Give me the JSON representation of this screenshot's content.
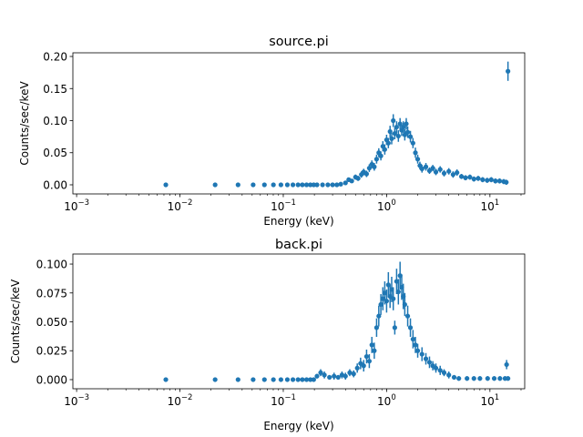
{
  "colors": {
    "series": "#1f77b4",
    "axis": "#000000",
    "background": "#ffffff"
  },
  "chart_data": [
    {
      "type": "scatter",
      "title": "source.pi",
      "xlabel": "Energy (keV)",
      "ylabel": "Counts/sec/keV",
      "xscale": "log",
      "xlim": [
        0.00092,
        21.7
      ],
      "ylim": [
        -0.0142,
        0.2057
      ],
      "xticks": [
        {
          "v": 0.001,
          "base": "10",
          "exp": "−3"
        },
        {
          "v": 0.01,
          "base": "10",
          "exp": "−2"
        },
        {
          "v": 0.1,
          "base": "10",
          "exp": "−1"
        },
        {
          "v": 1,
          "base": "10",
          "exp": "0"
        },
        {
          "v": 10,
          "base": "10",
          "exp": "1"
        }
      ],
      "yticks": [
        {
          "v": 0,
          "label": "0.00"
        },
        {
          "v": 0.05,
          "label": "0.05"
        },
        {
          "v": 0.1,
          "label": "0.10"
        },
        {
          "v": 0.15,
          "label": "0.15"
        },
        {
          "v": 0.2,
          "label": "0.20"
        }
      ],
      "grid": false,
      "points": [
        [
          0.0073,
          0,
          0.0005
        ],
        [
          0.0219,
          0,
          0.0005
        ],
        [
          0.0365,
          0,
          0.0005
        ],
        [
          0.0511,
          0,
          0.0005
        ],
        [
          0.0657,
          0,
          0.0005
        ],
        [
          0.0803,
          0,
          0.0005
        ],
        [
          0.0949,
          0,
          0.0005
        ],
        [
          0.1095,
          0,
          0.0005
        ],
        [
          0.124,
          0,
          0.0005
        ],
        [
          0.139,
          0,
          0.0005
        ],
        [
          0.153,
          0,
          0.0005
        ],
        [
          0.168,
          0,
          0.0005
        ],
        [
          0.183,
          0,
          0.0005
        ],
        [
          0.197,
          0,
          0.0005
        ],
        [
          0.212,
          0,
          0.0005
        ],
        [
          0.24,
          0,
          0.0005
        ],
        [
          0.27,
          0,
          0.0005
        ],
        [
          0.3,
          0,
          0.0005
        ],
        [
          0.33,
          0,
          0.0005
        ],
        [
          0.36,
          0.001,
          0.001
        ],
        [
          0.4,
          0.003,
          0.002
        ],
        [
          0.43,
          0.008,
          0.003
        ],
        [
          0.46,
          0.006,
          0.003
        ],
        [
          0.5,
          0.012,
          0.004
        ],
        [
          0.53,
          0.01,
          0.004
        ],
        [
          0.57,
          0.016,
          0.005
        ],
        [
          0.6,
          0.02,
          0.005
        ],
        [
          0.64,
          0.017,
          0.005
        ],
        [
          0.68,
          0.026,
          0.006
        ],
        [
          0.72,
          0.032,
          0.006
        ],
        [
          0.76,
          0.028,
          0.006
        ],
        [
          0.8,
          0.04,
          0.007
        ],
        [
          0.84,
          0.05,
          0.007
        ],
        [
          0.88,
          0.045,
          0.007
        ],
        [
          0.92,
          0.06,
          0.008
        ],
        [
          0.96,
          0.055,
          0.008
        ],
        [
          1.0,
          0.07,
          0.008
        ],
        [
          1.04,
          0.065,
          0.008
        ],
        [
          1.08,
          0.083,
          0.009
        ],
        [
          1.12,
          0.072,
          0.009
        ],
        [
          1.16,
          0.1,
          0.01
        ],
        [
          1.2,
          0.08,
          0.009
        ],
        [
          1.25,
          0.09,
          0.009
        ],
        [
          1.3,
          0.076,
          0.009
        ],
        [
          1.35,
          0.095,
          0.009
        ],
        [
          1.4,
          0.085,
          0.009
        ],
        [
          1.45,
          0.09,
          0.009
        ],
        [
          1.5,
          0.078,
          0.009
        ],
        [
          1.55,
          0.095,
          0.009
        ],
        [
          1.6,
          0.082,
          0.009
        ],
        [
          1.7,
          0.075,
          0.009
        ],
        [
          1.8,
          0.065,
          0.008
        ],
        [
          1.9,
          0.05,
          0.008
        ],
        [
          2.0,
          0.04,
          0.007
        ],
        [
          2.1,
          0.03,
          0.006
        ],
        [
          2.2,
          0.025,
          0.006
        ],
        [
          2.4,
          0.028,
          0.006
        ],
        [
          2.6,
          0.022,
          0.005
        ],
        [
          2.8,
          0.026,
          0.005
        ],
        [
          3.0,
          0.02,
          0.005
        ],
        [
          3.3,
          0.024,
          0.005
        ],
        [
          3.6,
          0.018,
          0.005
        ],
        [
          4.0,
          0.021,
          0.005
        ],
        [
          4.4,
          0.016,
          0.005
        ],
        [
          4.8,
          0.019,
          0.005
        ],
        [
          5.3,
          0.013,
          0.004
        ],
        [
          5.8,
          0.011,
          0.004
        ],
        [
          6.4,
          0.012,
          0.004
        ],
        [
          7.0,
          0.009,
          0.004
        ],
        [
          7.7,
          0.01,
          0.004
        ],
        [
          8.5,
          0.008,
          0.004
        ],
        [
          9.4,
          0.007,
          0.004
        ],
        [
          10.3,
          0.008,
          0.004
        ],
        [
          11.3,
          0.006,
          0.004
        ],
        [
          12.4,
          0.006,
          0.004
        ],
        [
          13.6,
          0.005,
          0.004
        ],
        [
          14.4,
          0.004,
          0.004
        ],
        [
          14.95,
          0.177,
          0.015
        ]
      ]
    },
    {
      "type": "scatter",
      "title": "back.pi",
      "xlabel": "Energy (keV)",
      "ylabel": "Counts/sec/keV",
      "xscale": "log",
      "xlim": [
        0.00092,
        21.7
      ],
      "ylim": [
        -0.0079,
        0.1087
      ],
      "xticks": [
        {
          "v": 0.001,
          "base": "10",
          "exp": "−3"
        },
        {
          "v": 0.01,
          "base": "10",
          "exp": "−2"
        },
        {
          "v": 0.1,
          "base": "10",
          "exp": "−1"
        },
        {
          "v": 1,
          "base": "10",
          "exp": "0"
        },
        {
          "v": 10,
          "base": "10",
          "exp": "1"
        }
      ],
      "yticks": [
        {
          "v": 0,
          "label": "0.000"
        },
        {
          "v": 0.025,
          "label": "0.025"
        },
        {
          "v": 0.05,
          "label": "0.050"
        },
        {
          "v": 0.075,
          "label": "0.075"
        },
        {
          "v": 0.1,
          "label": "0.100"
        }
      ],
      "grid": false,
      "points": [
        [
          0.0073,
          0,
          0.0015
        ],
        [
          0.0219,
          0,
          0.0015
        ],
        [
          0.0365,
          0,
          0.0015
        ],
        [
          0.0511,
          0,
          0.0015
        ],
        [
          0.0657,
          0,
          0.0015
        ],
        [
          0.0803,
          0,
          0.0015
        ],
        [
          0.0949,
          0,
          0.0015
        ],
        [
          0.1095,
          0,
          0.0015
        ],
        [
          0.124,
          0,
          0.0015
        ],
        [
          0.139,
          0,
          0.0015
        ],
        [
          0.153,
          0,
          0.0015
        ],
        [
          0.168,
          0,
          0.0015
        ],
        [
          0.183,
          0,
          0.0015
        ],
        [
          0.197,
          0,
          0.0015
        ],
        [
          0.212,
          0.003,
          0.002
        ],
        [
          0.23,
          0.006,
          0.003
        ],
        [
          0.25,
          0.004,
          0.003
        ],
        [
          0.28,
          0.002,
          0.002
        ],
        [
          0.31,
          0.003,
          0.003
        ],
        [
          0.34,
          0.002,
          0.002
        ],
        [
          0.37,
          0.004,
          0.003
        ],
        [
          0.4,
          0.003,
          0.003
        ],
        [
          0.44,
          0.006,
          0.003
        ],
        [
          0.48,
          0.005,
          0.003
        ],
        [
          0.52,
          0.01,
          0.004
        ],
        [
          0.56,
          0.014,
          0.005
        ],
        [
          0.6,
          0.012,
          0.005
        ],
        [
          0.64,
          0.02,
          0.006
        ],
        [
          0.68,
          0.016,
          0.006
        ],
        [
          0.72,
          0.03,
          0.007
        ],
        [
          0.76,
          0.025,
          0.007
        ],
        [
          0.8,
          0.045,
          0.008
        ],
        [
          0.84,
          0.055,
          0.009
        ],
        [
          0.88,
          0.065,
          0.009
        ],
        [
          0.92,
          0.07,
          0.01
        ],
        [
          0.96,
          0.075,
          0.01
        ],
        [
          1.0,
          0.068,
          0.01
        ],
        [
          1.04,
          0.082,
          0.011
        ],
        [
          1.08,
          0.072,
          0.01
        ],
        [
          1.12,
          0.078,
          0.011
        ],
        [
          1.16,
          0.07,
          0.01
        ],
        [
          1.2,
          0.045,
          0.006
        ],
        [
          1.25,
          0.085,
          0.011
        ],
        [
          1.3,
          0.076,
          0.011
        ],
        [
          1.35,
          0.09,
          0.012
        ],
        [
          1.4,
          0.08,
          0.011
        ],
        [
          1.45,
          0.072,
          0.011
        ],
        [
          1.5,
          0.065,
          0.01
        ],
        [
          1.6,
          0.055,
          0.009
        ],
        [
          1.7,
          0.045,
          0.008
        ],
        [
          1.8,
          0.035,
          0.008
        ],
        [
          1.9,
          0.03,
          0.007
        ],
        [
          2.0,
          0.025,
          0.006
        ],
        [
          2.2,
          0.022,
          0.006
        ],
        [
          2.4,
          0.018,
          0.005
        ],
        [
          2.6,
          0.015,
          0.005
        ],
        [
          2.8,
          0.012,
          0.004
        ],
        [
          3.0,
          0.01,
          0.004
        ],
        [
          3.3,
          0.008,
          0.004
        ],
        [
          3.6,
          0.006,
          0.003
        ],
        [
          4.0,
          0.004,
          0.003
        ],
        [
          4.5,
          0.002,
          0.002
        ],
        [
          5.0,
          0.001,
          0.002
        ],
        [
          6.0,
          0.001,
          0.002
        ],
        [
          7.0,
          0.001,
          0.002
        ],
        [
          8.0,
          0.001,
          0.002
        ],
        [
          9.5,
          0.001,
          0.002
        ],
        [
          11,
          0.001,
          0.002
        ],
        [
          12.5,
          0.001,
          0.002
        ],
        [
          14.0,
          0.001,
          0.002
        ],
        [
          14.5,
          0.013,
          0.004
        ],
        [
          14.95,
          0.001,
          0.002
        ]
      ]
    }
  ]
}
